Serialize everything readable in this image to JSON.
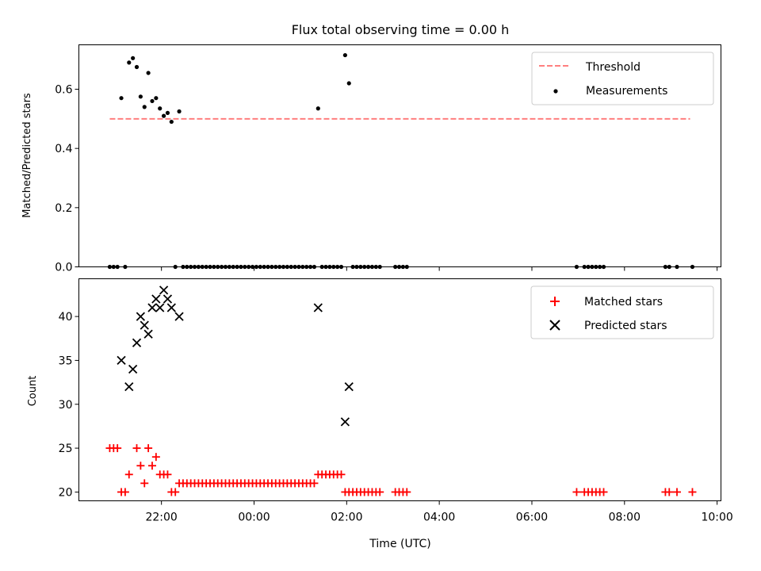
{
  "chart_data": [
    {
      "type": "scatter",
      "title": "Flux total observing time = 0.00 h",
      "xlabel": "",
      "ylabel": "Matched/Predicted stars",
      "xlim": [
        "2023-01-01T20:13",
        "2023-01-02T10:05"
      ],
      "ylim": [
        0,
        0.75
      ],
      "yticks": [
        0.0,
        0.2,
        0.4,
        0.6
      ],
      "ytick_labels": [
        "0.0",
        "0.2",
        "0.4",
        "0.6"
      ],
      "legend_position": "top-right",
      "series": [
        {
          "name": "Threshold",
          "kind": "dashed-line",
          "color": "#ff7f7f",
          "x": [
            "2023-01-01T20:53",
            "2023-01-02T09:25"
          ],
          "y": [
            0.5,
            0.5
          ]
        },
        {
          "name": "Measurements",
          "kind": "points",
          "color": "#000000",
          "points": [
            [
              "2023-01-01T20:53",
              0.0
            ],
            [
              "2023-01-01T20:58",
              0.0
            ],
            [
              "2023-01-01T21:03",
              0.0
            ],
            [
              "2023-01-01T21:08",
              0.57
            ],
            [
              "2023-01-01T21:13",
              0.0
            ],
            [
              "2023-01-01T21:18",
              0.69
            ],
            [
              "2023-01-01T21:23",
              0.705
            ],
            [
              "2023-01-01T21:28",
              0.675
            ],
            [
              "2023-01-01T21:33",
              0.575
            ],
            [
              "2023-01-01T21:38",
              0.54
            ],
            [
              "2023-01-01T21:43",
              0.655
            ],
            [
              "2023-01-01T21:48",
              0.56
            ],
            [
              "2023-01-01T21:53",
              0.57
            ],
            [
              "2023-01-01T21:58",
              0.535
            ],
            [
              "2023-01-01T22:03",
              0.51
            ],
            [
              "2023-01-01T22:08",
              0.52
            ],
            [
              "2023-01-01T22:13",
              0.49
            ],
            [
              "2023-01-01T22:18",
              0.0
            ],
            [
              "2023-01-01T22:23",
              0.525
            ],
            [
              "2023-01-01T22:28",
              0.0
            ],
            [
              "2023-01-01T22:33",
              0.0
            ],
            [
              "2023-01-01T22:38",
              0.0
            ],
            [
              "2023-01-01T22:43",
              0.0
            ],
            [
              "2023-01-01T22:48",
              0.0
            ],
            [
              "2023-01-01T22:53",
              0.0
            ],
            [
              "2023-01-01T22:58",
              0.0
            ],
            [
              "2023-01-01T23:03",
              0.0
            ],
            [
              "2023-01-01T23:08",
              0.0
            ],
            [
              "2023-01-01T23:13",
              0.0
            ],
            [
              "2023-01-01T23:18",
              0.0
            ],
            [
              "2023-01-01T23:23",
              0.0
            ],
            [
              "2023-01-01T23:28",
              0.0
            ],
            [
              "2023-01-01T23:33",
              0.0
            ],
            [
              "2023-01-01T23:38",
              0.0
            ],
            [
              "2023-01-01T23:43",
              0.0
            ],
            [
              "2023-01-01T23:48",
              0.0
            ],
            [
              "2023-01-01T23:53",
              0.0
            ],
            [
              "2023-01-01T23:58",
              0.0
            ],
            [
              "2023-01-02T00:03",
              0.0
            ],
            [
              "2023-01-02T00:08",
              0.0
            ],
            [
              "2023-01-02T00:13",
              0.0
            ],
            [
              "2023-01-02T00:18",
              0.0
            ],
            [
              "2023-01-02T00:23",
              0.0
            ],
            [
              "2023-01-02T00:28",
              0.0
            ],
            [
              "2023-01-02T00:33",
              0.0
            ],
            [
              "2023-01-02T00:38",
              0.0
            ],
            [
              "2023-01-02T00:43",
              0.0
            ],
            [
              "2023-01-02T00:48",
              0.0
            ],
            [
              "2023-01-02T00:53",
              0.0
            ],
            [
              "2023-01-02T00:58",
              0.0
            ],
            [
              "2023-01-02T01:03",
              0.0
            ],
            [
              "2023-01-02T01:08",
              0.0
            ],
            [
              "2023-01-02T01:13",
              0.0
            ],
            [
              "2023-01-02T01:18",
              0.0
            ],
            [
              "2023-01-02T01:23",
              0.535
            ],
            [
              "2023-01-02T01:28",
              0.0
            ],
            [
              "2023-01-02T01:33",
              0.0
            ],
            [
              "2023-01-02T01:38",
              0.0
            ],
            [
              "2023-01-02T01:43",
              0.0
            ],
            [
              "2023-01-02T01:48",
              0.0
            ],
            [
              "2023-01-02T01:53",
              0.0
            ],
            [
              "2023-01-02T01:58",
              0.715
            ],
            [
              "2023-01-02T02:03",
              0.62
            ],
            [
              "2023-01-02T02:08",
              0.0
            ],
            [
              "2023-01-02T02:13",
              0.0
            ],
            [
              "2023-01-02T02:18",
              0.0
            ],
            [
              "2023-01-02T02:23",
              0.0
            ],
            [
              "2023-01-02T02:28",
              0.0
            ],
            [
              "2023-01-02T02:33",
              0.0
            ],
            [
              "2023-01-02T02:38",
              0.0
            ],
            [
              "2023-01-02T02:43",
              0.0
            ],
            [
              "2023-01-02T03:03",
              0.0
            ],
            [
              "2023-01-02T03:08",
              0.0
            ],
            [
              "2023-01-02T03:13",
              0.0
            ],
            [
              "2023-01-02T03:18",
              0.0
            ],
            [
              "2023-01-02T06:58",
              0.0
            ],
            [
              "2023-01-02T07:08",
              0.0
            ],
            [
              "2023-01-02T07:13",
              0.0
            ],
            [
              "2023-01-02T07:18",
              0.0
            ],
            [
              "2023-01-02T07:23",
              0.0
            ],
            [
              "2023-01-02T07:28",
              0.0
            ],
            [
              "2023-01-02T07:33",
              0.0
            ],
            [
              "2023-01-02T08:53",
              0.0
            ],
            [
              "2023-01-02T08:58",
              0.0
            ],
            [
              "2023-01-02T09:08",
              0.0
            ],
            [
              "2023-01-02T09:28",
              0.0
            ]
          ]
        }
      ]
    },
    {
      "type": "scatter",
      "title": "",
      "xlabel": "Time (UTC)",
      "ylabel": "Count",
      "xlim": [
        "2023-01-01T20:13",
        "2023-01-02T10:05"
      ],
      "ylim": [
        19,
        44.3
      ],
      "yticks": [
        20,
        25,
        30,
        35,
        40
      ],
      "ytick_labels": [
        "20",
        "25",
        "30",
        "35",
        "40"
      ],
      "xticks": [
        "2023-01-01T22:00",
        "2023-01-02T00:00",
        "2023-01-02T02:00",
        "2023-01-02T04:00",
        "2023-01-02T06:00",
        "2023-01-02T08:00",
        "2023-01-02T10:00"
      ],
      "xtick_labels": [
        "22:00",
        "00:00",
        "02:00",
        "04:00",
        "06:00",
        "08:00",
        "10:00"
      ],
      "legend_position": "top-right",
      "series": [
        {
          "name": "Matched stars",
          "kind": "plus",
          "color": "#ff0000",
          "points": [
            [
              "2023-01-01T20:53",
              25
            ],
            [
              "2023-01-01T20:58",
              25
            ],
            [
              "2023-01-01T21:03",
              25
            ],
            [
              "2023-01-01T21:08",
              20
            ],
            [
              "2023-01-01T21:13",
              20
            ],
            [
              "2023-01-01T21:18",
              22
            ],
            [
              "2023-01-01T21:28",
              25
            ],
            [
              "2023-01-01T21:33",
              23
            ],
            [
              "2023-01-01T21:38",
              21
            ],
            [
              "2023-01-01T21:43",
              25
            ],
            [
              "2023-01-01T21:48",
              23
            ],
            [
              "2023-01-01T21:53",
              24
            ],
            [
              "2023-01-01T21:58",
              22
            ],
            [
              "2023-01-01T22:03",
              22
            ],
            [
              "2023-01-01T22:08",
              22
            ],
            [
              "2023-01-01T22:13",
              20
            ],
            [
              "2023-01-01T22:18",
              20
            ],
            [
              "2023-01-01T22:23",
              21
            ],
            [
              "2023-01-01T22:28",
              21
            ],
            [
              "2023-01-01T22:33",
              21
            ],
            [
              "2023-01-01T22:38",
              21
            ],
            [
              "2023-01-01T22:43",
              21
            ],
            [
              "2023-01-01T22:48",
              21
            ],
            [
              "2023-01-01T22:53",
              21
            ],
            [
              "2023-01-01T22:58",
              21
            ],
            [
              "2023-01-01T23:03",
              21
            ],
            [
              "2023-01-01T23:08",
              21
            ],
            [
              "2023-01-01T23:13",
              21
            ],
            [
              "2023-01-01T23:18",
              21
            ],
            [
              "2023-01-01T23:23",
              21
            ],
            [
              "2023-01-01T23:28",
              21
            ],
            [
              "2023-01-01T23:33",
              21
            ],
            [
              "2023-01-01T23:38",
              21
            ],
            [
              "2023-01-01T23:43",
              21
            ],
            [
              "2023-01-01T23:48",
              21
            ],
            [
              "2023-01-01T23:53",
              21
            ],
            [
              "2023-01-01T23:58",
              21
            ],
            [
              "2023-01-02T00:03",
              21
            ],
            [
              "2023-01-02T00:08",
              21
            ],
            [
              "2023-01-02T00:13",
              21
            ],
            [
              "2023-01-02T00:18",
              21
            ],
            [
              "2023-01-02T00:23",
              21
            ],
            [
              "2023-01-02T00:28",
              21
            ],
            [
              "2023-01-02T00:33",
              21
            ],
            [
              "2023-01-02T00:38",
              21
            ],
            [
              "2023-01-02T00:43",
              21
            ],
            [
              "2023-01-02T00:48",
              21
            ],
            [
              "2023-01-02T00:53",
              21
            ],
            [
              "2023-01-02T00:58",
              21
            ],
            [
              "2023-01-02T01:03",
              21
            ],
            [
              "2023-01-02T01:08",
              21
            ],
            [
              "2023-01-02T01:13",
              21
            ],
            [
              "2023-01-02T01:18",
              21
            ],
            [
              "2023-01-02T01:23",
              22
            ],
            [
              "2023-01-02T01:28",
              22
            ],
            [
              "2023-01-02T01:33",
              22
            ],
            [
              "2023-01-02T01:38",
              22
            ],
            [
              "2023-01-02T01:43",
              22
            ],
            [
              "2023-01-02T01:48",
              22
            ],
            [
              "2023-01-02T01:53",
              22
            ],
            [
              "2023-01-02T01:58",
              20
            ],
            [
              "2023-01-02T02:03",
              20
            ],
            [
              "2023-01-02T02:08",
              20
            ],
            [
              "2023-01-02T02:13",
              20
            ],
            [
              "2023-01-02T02:18",
              20
            ],
            [
              "2023-01-02T02:23",
              20
            ],
            [
              "2023-01-02T02:28",
              20
            ],
            [
              "2023-01-02T02:33",
              20
            ],
            [
              "2023-01-02T02:38",
              20
            ],
            [
              "2023-01-02T02:43",
              20
            ],
            [
              "2023-01-02T03:03",
              20
            ],
            [
              "2023-01-02T03:08",
              20
            ],
            [
              "2023-01-02T03:13",
              20
            ],
            [
              "2023-01-02T03:18",
              20
            ],
            [
              "2023-01-02T06:58",
              20
            ],
            [
              "2023-01-02T07:08",
              20
            ],
            [
              "2023-01-02T07:13",
              20
            ],
            [
              "2023-01-02T07:18",
              20
            ],
            [
              "2023-01-02T07:23",
              20
            ],
            [
              "2023-01-02T07:28",
              20
            ],
            [
              "2023-01-02T07:33",
              20
            ],
            [
              "2023-01-02T08:53",
              20
            ],
            [
              "2023-01-02T08:58",
              20
            ],
            [
              "2023-01-02T09:08",
              20
            ],
            [
              "2023-01-02T09:28",
              20
            ]
          ]
        },
        {
          "name": "Predicted stars",
          "kind": "x",
          "color": "#000000",
          "points": [
            [
              "2023-01-01T21:08",
              35
            ],
            [
              "2023-01-01T21:18",
              32
            ],
            [
              "2023-01-01T21:23",
              34
            ],
            [
              "2023-01-01T21:28",
              37
            ],
            [
              "2023-01-01T21:33",
              40
            ],
            [
              "2023-01-01T21:38",
              39
            ],
            [
              "2023-01-01T21:43",
              38
            ],
            [
              "2023-01-01T21:48",
              41
            ],
            [
              "2023-01-01T21:53",
              42
            ],
            [
              "2023-01-01T21:58",
              41
            ],
            [
              "2023-01-01T22:03",
              43
            ],
            [
              "2023-01-01T22:08",
              42
            ],
            [
              "2023-01-01T22:13",
              41
            ],
            [
              "2023-01-01T22:23",
              40
            ],
            [
              "2023-01-02T01:23",
              41
            ],
            [
              "2023-01-02T01:58",
              28
            ],
            [
              "2023-01-02T02:03",
              32
            ]
          ]
        }
      ]
    }
  ]
}
